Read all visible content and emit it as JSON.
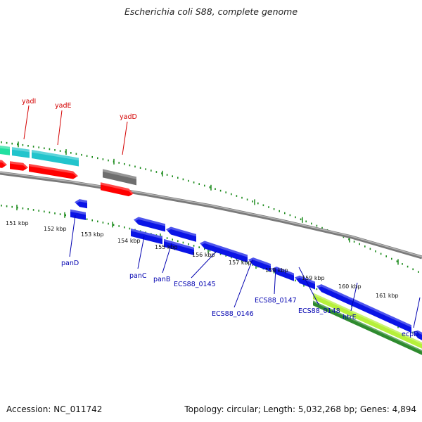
{
  "title": "Escherichia coli S88, complete genome",
  "footer": {
    "accession": "Accession: NC_011742",
    "summary": "Topology: circular; Length: 5,032,268 bp; Genes: 4,894"
  },
  "colors": {
    "backbone": "#8c8c8c",
    "tick": "#1a8a1a",
    "red_label": "#d40000",
    "blue_label": "#0000b0",
    "gene_red": "#ff0000",
    "gene_cyan": "#22c4cc",
    "gene_gray": "#6e6e6e",
    "gene_blue": "#0a14e6",
    "gene_green": "#2e8b2e",
    "gene_lightgreen": "#b6f03a",
    "gene_teal": "#22e0a0"
  },
  "kbp_labels": [
    "151 kbp",
    "152 kbp",
    "153 kbp",
    "154 kbp",
    "155 kbp",
    "156 kbp",
    "157 kbp",
    "158 kbp",
    "159 kbp",
    "160 kbp",
    "161 kbp"
  ],
  "genes_top": [
    "yadI",
    "yadE",
    "yadD"
  ],
  "genes_bottom": [
    "panD",
    "panC",
    "panB",
    "ECS88_0145",
    "ECS88_0146",
    "ECS88_0147",
    "ECS88_0148",
    "htrE",
    "ecpD"
  ]
}
